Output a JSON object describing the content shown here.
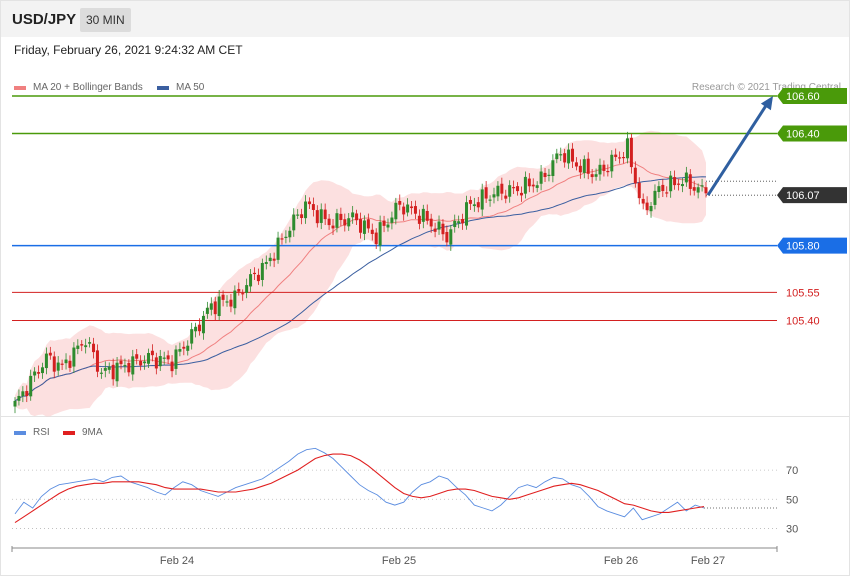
{
  "header": {
    "pair": "USD/JPY",
    "timeframe": "30 MIN",
    "datetime": "Friday, February 26, 2021 9:24:32 AM CET",
    "copyright": "Research © 2021 Trading Central"
  },
  "colors": {
    "candle_up": "#2e8b2e",
    "candle_down": "#d32020",
    "band_fill": "#f9c7c7",
    "ma20": "#f08080",
    "ma50": "#3b5fa0",
    "resistance": "#4a9a0a",
    "pivot": "#1a6ee6",
    "support": "#f08080",
    "arrow": "#2f5fa0",
    "rsi": "#5b8de0",
    "rsi_ma": "#e02020"
  },
  "chart_data": [
    {
      "type": "candlestick",
      "title": "USD/JPY 30 MIN",
      "legend": [
        {
          "name": "MA 20 + Bollinger Bands",
          "color": "#f08080"
        },
        {
          "name": "MA 50",
          "color": "#3b5fa0"
        }
      ],
      "x_ticks": [
        "Feb 24",
        "Feb 25",
        "Feb 26",
        "Feb 27"
      ],
      "ylim": [
        104.9,
        106.75
      ],
      "current_price": 106.07,
      "levels": [
        {
          "value": 106.6,
          "label": "106.60",
          "role": "resistance",
          "color": "#4a9a0a",
          "tag": "box"
        },
        {
          "value": 106.4,
          "label": "106.40",
          "role": "resistance",
          "color": "#4a9a0a",
          "tag": "box"
        },
        {
          "value": 106.07,
          "label": "106.07",
          "role": "last",
          "color": "#333333",
          "tag": "box"
        },
        {
          "value": 105.8,
          "label": "105.80",
          "role": "pivot",
          "color": "#1a6ee6",
          "tag": "box"
        },
        {
          "value": 105.55,
          "label": "105.55",
          "role": "support",
          "color": "#d32020",
          "tag": "text"
        },
        {
          "value": 105.4,
          "label": "105.40",
          "role": "support",
          "color": "#d32020",
          "tag": "text"
        }
      ],
      "projection": {
        "from": 106.07,
        "to": 106.6
      },
      "close_anchors": [
        [
          0,
          104.95
        ],
        [
          8,
          105.2
        ],
        [
          12,
          105.15
        ],
        [
          18,
          105.3
        ],
        [
          22,
          105.12
        ],
        [
          28,
          105.16
        ],
        [
          34,
          105.2
        ],
        [
          40,
          105.18
        ],
        [
          45,
          105.32
        ],
        [
          50,
          105.48
        ],
        [
          56,
          105.52
        ],
        [
          60,
          105.62
        ],
        [
          64,
          105.7
        ],
        [
          70,
          105.9
        ],
        [
          74,
          106.02
        ],
        [
          80,
          105.92
        ],
        [
          86,
          105.95
        ],
        [
          92,
          105.85
        ],
        [
          98,
          106.02
        ],
        [
          104,
          105.95
        ],
        [
          110,
          105.85
        ],
        [
          116,
          106.02
        ],
        [
          122,
          106.08
        ],
        [
          128,
          106.1
        ],
        [
          134,
          106.15
        ],
        [
          139,
          106.3
        ],
        [
          144,
          106.22
        ],
        [
          148,
          106.18
        ],
        [
          152,
          106.25
        ],
        [
          156,
          106.32
        ],
        [
          160,
          105.98
        ],
        [
          164,
          106.1
        ],
        [
          170,
          106.15
        ],
        [
          176,
          106.08
        ]
      ]
    },
    {
      "type": "line",
      "title": "RSI",
      "series": [
        {
          "name": "RSI",
          "color": "#5b8de0",
          "values": [
            40,
            48,
            44,
            52,
            57,
            60,
            61,
            62,
            63,
            64,
            62,
            65,
            66,
            62,
            60,
            58,
            55,
            53,
            58,
            62,
            60,
            56,
            54,
            52,
            55,
            58,
            60,
            62,
            64,
            68,
            72,
            76,
            81,
            84,
            85,
            82,
            78,
            72,
            66,
            60,
            56,
            53,
            48,
            46,
            48,
            55,
            60,
            62,
            66,
            64,
            58,
            53,
            46,
            44,
            42,
            46,
            52,
            58,
            60,
            58,
            62,
            65,
            64,
            60,
            58,
            52,
            45,
            42,
            40,
            38,
            44,
            36,
            38,
            40,
            44,
            48,
            42,
            46,
            44
          ]
        },
        {
          "name": "9MA",
          "color": "#e02020",
          "values": [
            34,
            38,
            42,
            46,
            50,
            54,
            57,
            59,
            60,
            61,
            61,
            62,
            62,
            62,
            62,
            61,
            60,
            58,
            57,
            57,
            57,
            57,
            56,
            55,
            55,
            55,
            56,
            57,
            59,
            61,
            64,
            67,
            70,
            74,
            78,
            80,
            81,
            81,
            80,
            77,
            73,
            68,
            63,
            58,
            54,
            52,
            51,
            52,
            54,
            56,
            57,
            57,
            56,
            54,
            52,
            51,
            50,
            51,
            53,
            55,
            57,
            59,
            60,
            61,
            60,
            58,
            56,
            53,
            50,
            47,
            46,
            44,
            42,
            41,
            41,
            42,
            43,
            44,
            45
          ]
        }
      ],
      "ylim": [
        20,
        90
      ],
      "y_ticks": [
        70,
        50,
        30
      ],
      "current_rsi": 44
    }
  ]
}
